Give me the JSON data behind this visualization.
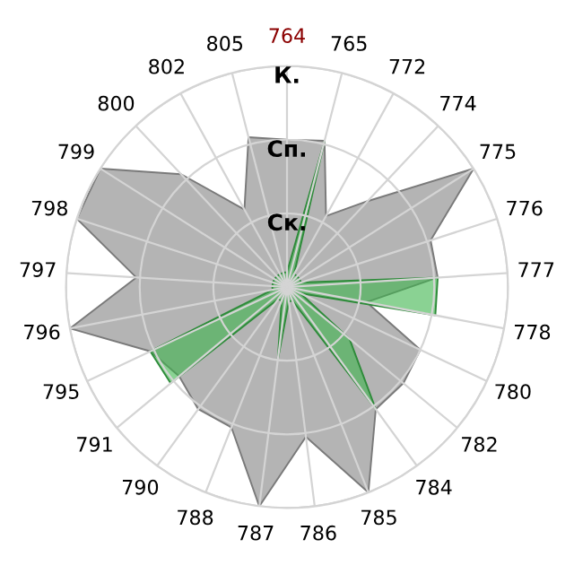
{
  "chart_data": {
    "type": "radar",
    "categories": [
      "764",
      "765",
      "772",
      "774",
      "775",
      "776",
      "777",
      "778",
      "780",
      "782",
      "784",
      "785",
      "786",
      "787",
      "788",
      "790",
      "791",
      "795",
      "796",
      "797",
      "798",
      "799",
      "800",
      "802",
      "805"
    ],
    "series": [
      {
        "color": "#b4b4b4",
        "values": [
          2.0,
          2.05,
          1.1,
          1.6,
          3.0,
          2.05,
          2.05,
          1.1,
          2.0,
          2.05,
          2.05,
          3.0,
          2.05,
          3.0,
          2.05,
          2.05,
          1.9,
          2.05,
          3.0,
          2.05,
          3.0,
          3.0,
          2.1,
          1.2,
          2.1
        ]
      },
      {
        "color": "#3cb44b",
        "values": [
          0.2,
          2.05,
          0.2,
          0.2,
          0.2,
          0.2,
          2.05,
          2.05,
          0.2,
          1.1,
          2.05,
          0.2,
          0.2,
          1.0,
          0.2,
          0.2,
          2.05,
          2.05,
          0.2,
          0.2,
          0.2,
          0.2,
          0.2,
          0.2,
          0.2
        ]
      }
    ],
    "ylim": [
      0,
      3
    ],
    "yticks": [
      {
        "value": 1,
        "label": "Ск."
      },
      {
        "value": 2,
        "label": "Сп."
      },
      {
        "value": 3,
        "label": "К."
      }
    ],
    "grid": true
  }
}
